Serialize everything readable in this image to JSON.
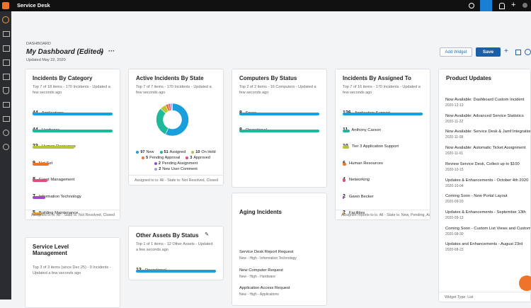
{
  "top_bar": {
    "title": "Service Desk"
  },
  "header": {
    "breadcrumb": "DASHBOARD",
    "title": "My Dashboard (Edited)",
    "updated": "Updated May 22, 2020",
    "add_widget": "Add Widget",
    "save": "Save"
  },
  "widgets": [
    {
      "type": "bars",
      "title": "Incidents By Category",
      "subtitle": "Top 7 of 18 items - 170 Incidents - Updated a few seconds ago",
      "items": [
        {
          "label": "Applications",
          "value": 44,
          "color": "#1a9fdd"
        },
        {
          "label": "Hardware",
          "value": 44,
          "color": "#1fb89a"
        },
        {
          "label": "Human Resources",
          "value": 23,
          "color": "#b8c43a"
        },
        {
          "label": "Not Set",
          "value": 9,
          "color": "#f0732a"
        },
        {
          "label": "Event Management",
          "value": 8,
          "color": "#e7497d"
        },
        {
          "label": "Information Technology",
          "value": 7,
          "color": "#9b4cc6"
        },
        {
          "label": "Building Maintenance",
          "value": 5,
          "color": "#f0a030"
        }
      ],
      "footer": "Assigned to is: All - State is: Not Resolved, Closed"
    },
    {
      "type": "donut",
      "title": "Active Incidents By State",
      "subtitle": "Top 7 of 7 items - 170 Incidents - Updated a few seconds ago",
      "items": [
        {
          "label": "New",
          "value": 97,
          "color": "#1a9fdd"
        },
        {
          "label": "Assigned",
          "value": 51,
          "color": "#1fb89a"
        },
        {
          "label": "On Hold",
          "value": 10,
          "color": "#b8c43a"
        },
        {
          "label": "Pending Approval",
          "value": 5,
          "color": "#f0732a"
        },
        {
          "label": "Approved",
          "value": 3,
          "color": "#e7497d"
        },
        {
          "label": "Pending Assignment",
          "value": 2,
          "color": "#9b4cc6"
        },
        {
          "label": "New User Comment",
          "value": 2,
          "color": "#a59be0"
        }
      ],
      "footer": "Assigned to is: All - State is: Not Resolved, Closed"
    },
    {
      "type": "bars",
      "title": "Computers By Status",
      "subtitle": "Top 2 of 2 items - 16 Computers - Updated a few seconds ago",
      "items": [
        {
          "label": "Spare",
          "value": 8,
          "color": "#1a9fdd"
        },
        {
          "label": "Operational",
          "value": 8,
          "color": "#1fb89a"
        }
      ]
    },
    {
      "type": "bars",
      "title": "Incidents By Assigned To",
      "subtitle": "Top 7 of 16 items - 170 Incidents - Updated a few seconds ago",
      "items": [
        {
          "label": "Application Support",
          "value": 126,
          "color": "#1a9fdd"
        },
        {
          "label": "Anthony Carson",
          "value": 11,
          "color": "#1fb89a"
        },
        {
          "label": "Tier 3 Application Support",
          "value": 10,
          "color": "#b8c43a"
        },
        {
          "label": "Human Resources",
          "value": 6,
          "color": "#f0732a"
        },
        {
          "label": "Networking",
          "value": 4,
          "color": "#e7497d"
        },
        {
          "label": "Gwen Becker",
          "value": 2,
          "color": "#9b4cc6"
        },
        {
          "label": "Facilities",
          "value": 2,
          "color": "#f0a030"
        }
      ],
      "footer": "Assignee reports to is: All - State is: New, Pending, Assigned"
    },
    {
      "type": "list",
      "title": "Product Updates",
      "items": [
        {
          "title": "Now Available: Dashboard Custom Incident",
          "date": "2020-12-13"
        },
        {
          "title": "Now Available: Advanced Service Statistics",
          "date": "2020-11-22"
        },
        {
          "title": "Now Available: Service Desk & Jamf Integration",
          "date": "2020-11-08"
        },
        {
          "title": "Now Available: Automatic Ticket Assignment",
          "date": "2020-11-01"
        },
        {
          "title": "Review Service Desk, Collect up to $100",
          "date": "2020-10-15"
        },
        {
          "title": "Updates & Enhancements - October 4th 2020",
          "date": "2020-10-04"
        },
        {
          "title": "Coming Soon - New Portal Layout",
          "date": "2020-09-20"
        },
        {
          "title": "Updates & Enhancements - September 13th",
          "date": "2020-09-13"
        },
        {
          "title": "Coming Soon - Custom List Views and Custom",
          "date": "2020-08-30"
        },
        {
          "title": "Updates and Enhancements - August 23rd",
          "date": "2020-08-23"
        }
      ],
      "footer": "Widget Type: List"
    },
    {
      "type": "bars",
      "title": "Other Assets By Status",
      "subtitle": "Top 1 of 1 items - 12 Other Assets - Updated a few seconds ago",
      "items": [
        {
          "label": "Operational",
          "value": 12,
          "color": "#1a9fdd"
        }
      ]
    },
    {
      "type": "aging",
      "title": "Aging Incidents",
      "items": [
        {
          "title": "Service Desk Report Request",
          "detail": "New - High - Information Technology"
        },
        {
          "title": "New Computer Request",
          "detail": "New - High - Hardware"
        },
        {
          "title": "Application Access Request",
          "detail": "New - High - Applications"
        }
      ]
    },
    {
      "type": "empty",
      "title": "Service Level Management",
      "subtitle": "Top 3 of 3 items (since Dec 25) - 0 Incidents - Updated a few seconds ago"
    }
  ]
}
